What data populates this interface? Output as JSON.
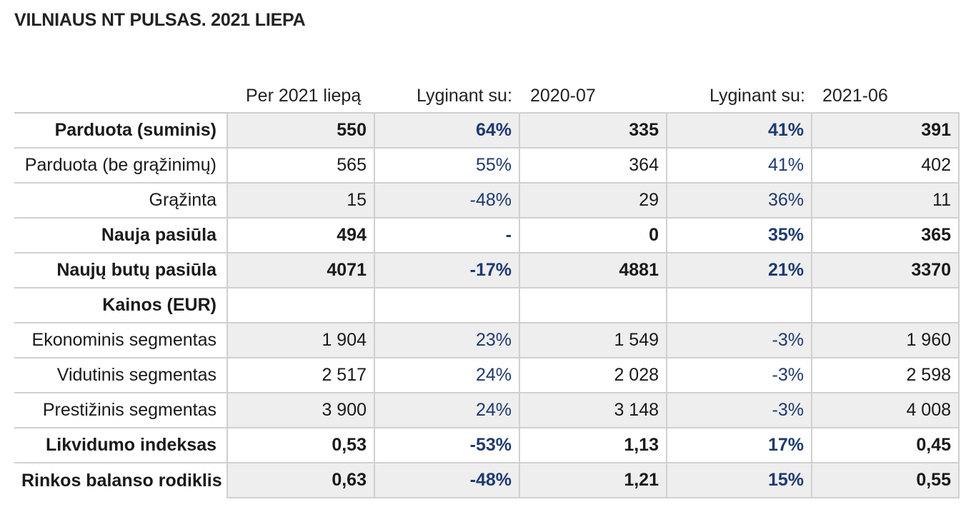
{
  "title": "VILNIAUS NT PULSAS. 2021 LIEPA",
  "headers": {
    "period": "Per 2021 liepą",
    "compare1_label": "Lyginant su:",
    "compare1_date": "2020-07",
    "compare2_label": "Lyginant su:",
    "compare2_date": "2021-06"
  },
  "rows": [
    {
      "label": "Parduota (suminis)",
      "v": "550",
      "p1": "64%",
      "v1": "335",
      "p2": "41%",
      "v2": "391"
    },
    {
      "label": "Parduota (be grąžinimų)",
      "v": "565",
      "p1": "55%",
      "v1": "364",
      "p2": "41%",
      "v2": "402"
    },
    {
      "label": "Grąžinta",
      "v": "15",
      "p1": "-48%",
      "v1": "29",
      "p2": "36%",
      "v2": "11"
    },
    {
      "label": "Nauja pasiūla",
      "v": "494",
      "p1": "-",
      "v1": "0",
      "p2": "35%",
      "v2": "365"
    },
    {
      "label": "Naujų butų pasiūla",
      "v": "4071",
      "p1": "-17%",
      "v1": "4881",
      "p2": "21%",
      "v2": "3370"
    },
    {
      "label": "Kainos (EUR)",
      "v": "",
      "p1": "",
      "v1": "",
      "p2": "",
      "v2": ""
    },
    {
      "label": "Ekonominis segmentas",
      "v": "1 904",
      "p1": "23%",
      "v1": "1 549",
      "p2": "-3%",
      "v2": "1 960"
    },
    {
      "label": "Vidutinis segmentas",
      "v": "2 517",
      "p1": "24%",
      "v1": "2 028",
      "p2": "-3%",
      "v2": "2 598"
    },
    {
      "label": "Prestižinis segmentas",
      "v": "3 900",
      "p1": "24%",
      "v1": "3 148",
      "p2": "-3%",
      "v2": "4 008"
    },
    {
      "label": "Likvidumo indeksas",
      "v": "0,53",
      "p1": "-53%",
      "v1": "1,13",
      "p2": "17%",
      "v2": "0,45"
    },
    {
      "label": "Rinkos balanso rodiklis",
      "v": "0,63",
      "p1": "-48%",
      "v1": "1,21",
      "p2": "15%",
      "v2": "0,55"
    }
  ],
  "colors": {
    "percent_text": "#1f3a6e",
    "shaded_bg": "#eeeeee",
    "grid_line": "#d0d0d0"
  }
}
